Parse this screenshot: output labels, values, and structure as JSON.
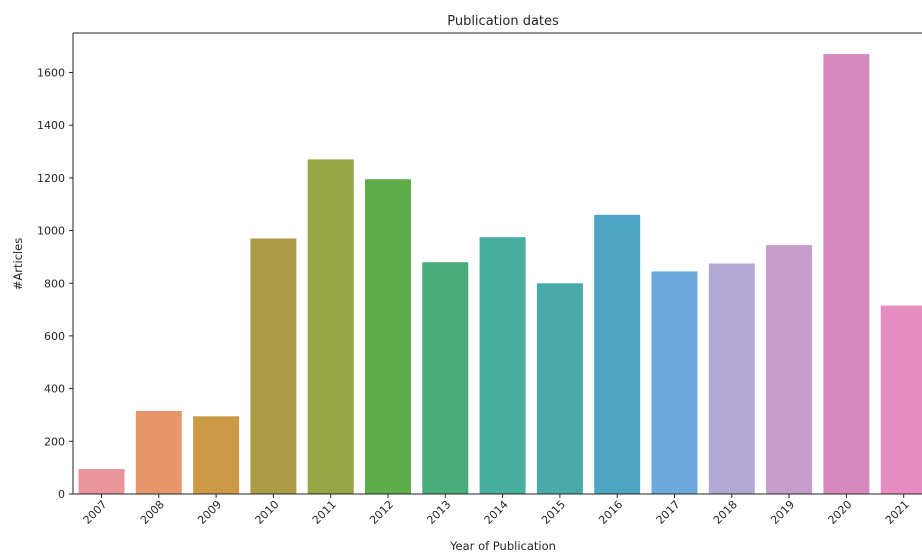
{
  "chart_data": {
    "type": "bar",
    "title": "Publication dates",
    "xlabel": "Year of Publication",
    "ylabel": "#Articles",
    "categories": [
      "2007",
      "2008",
      "2009",
      "2010",
      "2011",
      "2012",
      "2013",
      "2014",
      "2015",
      "2016",
      "2017",
      "2018",
      "2019",
      "2020",
      "2021"
    ],
    "values": [
      95,
      315,
      295,
      970,
      1270,
      1195,
      880,
      975,
      800,
      1060,
      845,
      875,
      945,
      1670,
      715
    ],
    "colors": [
      "#ea959c",
      "#e8976a",
      "#cc9a47",
      "#ad9c47",
      "#96a545",
      "#5ead4a",
      "#48ad7b",
      "#4aae9e",
      "#4aaaaa",
      "#4ea6c2",
      "#6da9dc",
      "#b1a8d4",
      "#c89cca",
      "#d689bc",
      "#e58cc1"
    ],
    "ylim": [
      0,
      1750
    ],
    "yticks": [
      0,
      200,
      400,
      600,
      800,
      1000,
      1200,
      1400,
      1600
    ],
    "grid": false,
    "legend": "none"
  }
}
